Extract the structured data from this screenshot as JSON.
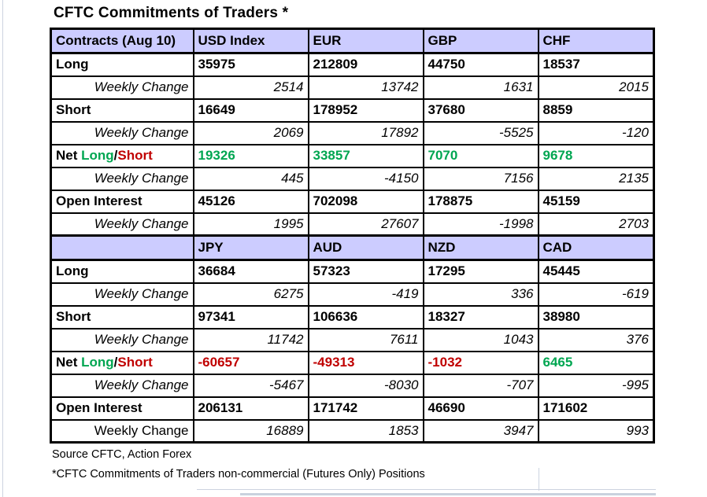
{
  "title": "CFTC Commitments of Traders *",
  "colors": {
    "header_bg": "#ccccff",
    "positive": "#00a651",
    "negative": "#c00000"
  },
  "row_labels": {
    "weekly_change": "Weekly Change"
  },
  "net_label": {
    "net": "Net ",
    "long": "Long",
    "slash": "/",
    "short": "Short"
  },
  "footer": {
    "source": "Source CFTC, Action Forex",
    "note": "*CFTC Commitments of Traders non-commercial (Futures Only) Positions"
  },
  "tables": [
    {
      "header": [
        "Contracts (Aug 10)",
        "USD Index",
        "EUR",
        "GBP",
        "CHF"
      ],
      "rows": [
        {
          "type": "bold",
          "label": "Long",
          "values": [
            "35975",
            "212809",
            "44750",
            "18537"
          ]
        },
        {
          "type": "italic",
          "values": [
            "2514",
            "13742",
            "1631",
            "2015"
          ]
        },
        {
          "type": "bold",
          "label": "Short",
          "values": [
            "16649",
            "178952",
            "37680",
            "8859"
          ]
        },
        {
          "type": "italic",
          "values": [
            "2069",
            "17892",
            "-5525",
            "-120"
          ]
        },
        {
          "type": "net",
          "values": [
            "19326",
            "33857",
            "7070",
            "9678"
          ]
        },
        {
          "type": "italic",
          "values": [
            "445",
            "-4150",
            "7156",
            "2135"
          ]
        },
        {
          "type": "bold",
          "label": "Open Interest",
          "values": [
            "45126",
            "702098",
            "178875",
            "45159"
          ]
        },
        {
          "type": "italic",
          "values": [
            "1995",
            "27607",
            "-1998",
            "2703"
          ]
        }
      ]
    },
    {
      "header": [
        "",
        "JPY",
        "AUD",
        "NZD",
        "CAD"
      ],
      "rows": [
        {
          "type": "bold",
          "label": "Long",
          "values": [
            "36684",
            "57323",
            "17295",
            "45445"
          ]
        },
        {
          "type": "italic",
          "values": [
            "6275",
            "-419",
            "336",
            "-619"
          ]
        },
        {
          "type": "bold",
          "label": "Short",
          "values": [
            "97341",
            "106636",
            "18327",
            "38980"
          ]
        },
        {
          "type": "italic",
          "values": [
            "11742",
            "7611",
            "1043",
            "376"
          ]
        },
        {
          "type": "net",
          "values": [
            "-60657",
            "-49313",
            "-1032",
            "6465"
          ]
        },
        {
          "type": "italic",
          "values": [
            "-5467",
            "-8030",
            "-707",
            "-995"
          ]
        },
        {
          "type": "bold",
          "label": "Open Interest",
          "values": [
            "206131",
            "171742",
            "46690",
            "171602"
          ]
        },
        {
          "type": "italic",
          "upright": true,
          "values": [
            "16889",
            "1853",
            "3947",
            "993"
          ]
        }
      ]
    }
  ]
}
